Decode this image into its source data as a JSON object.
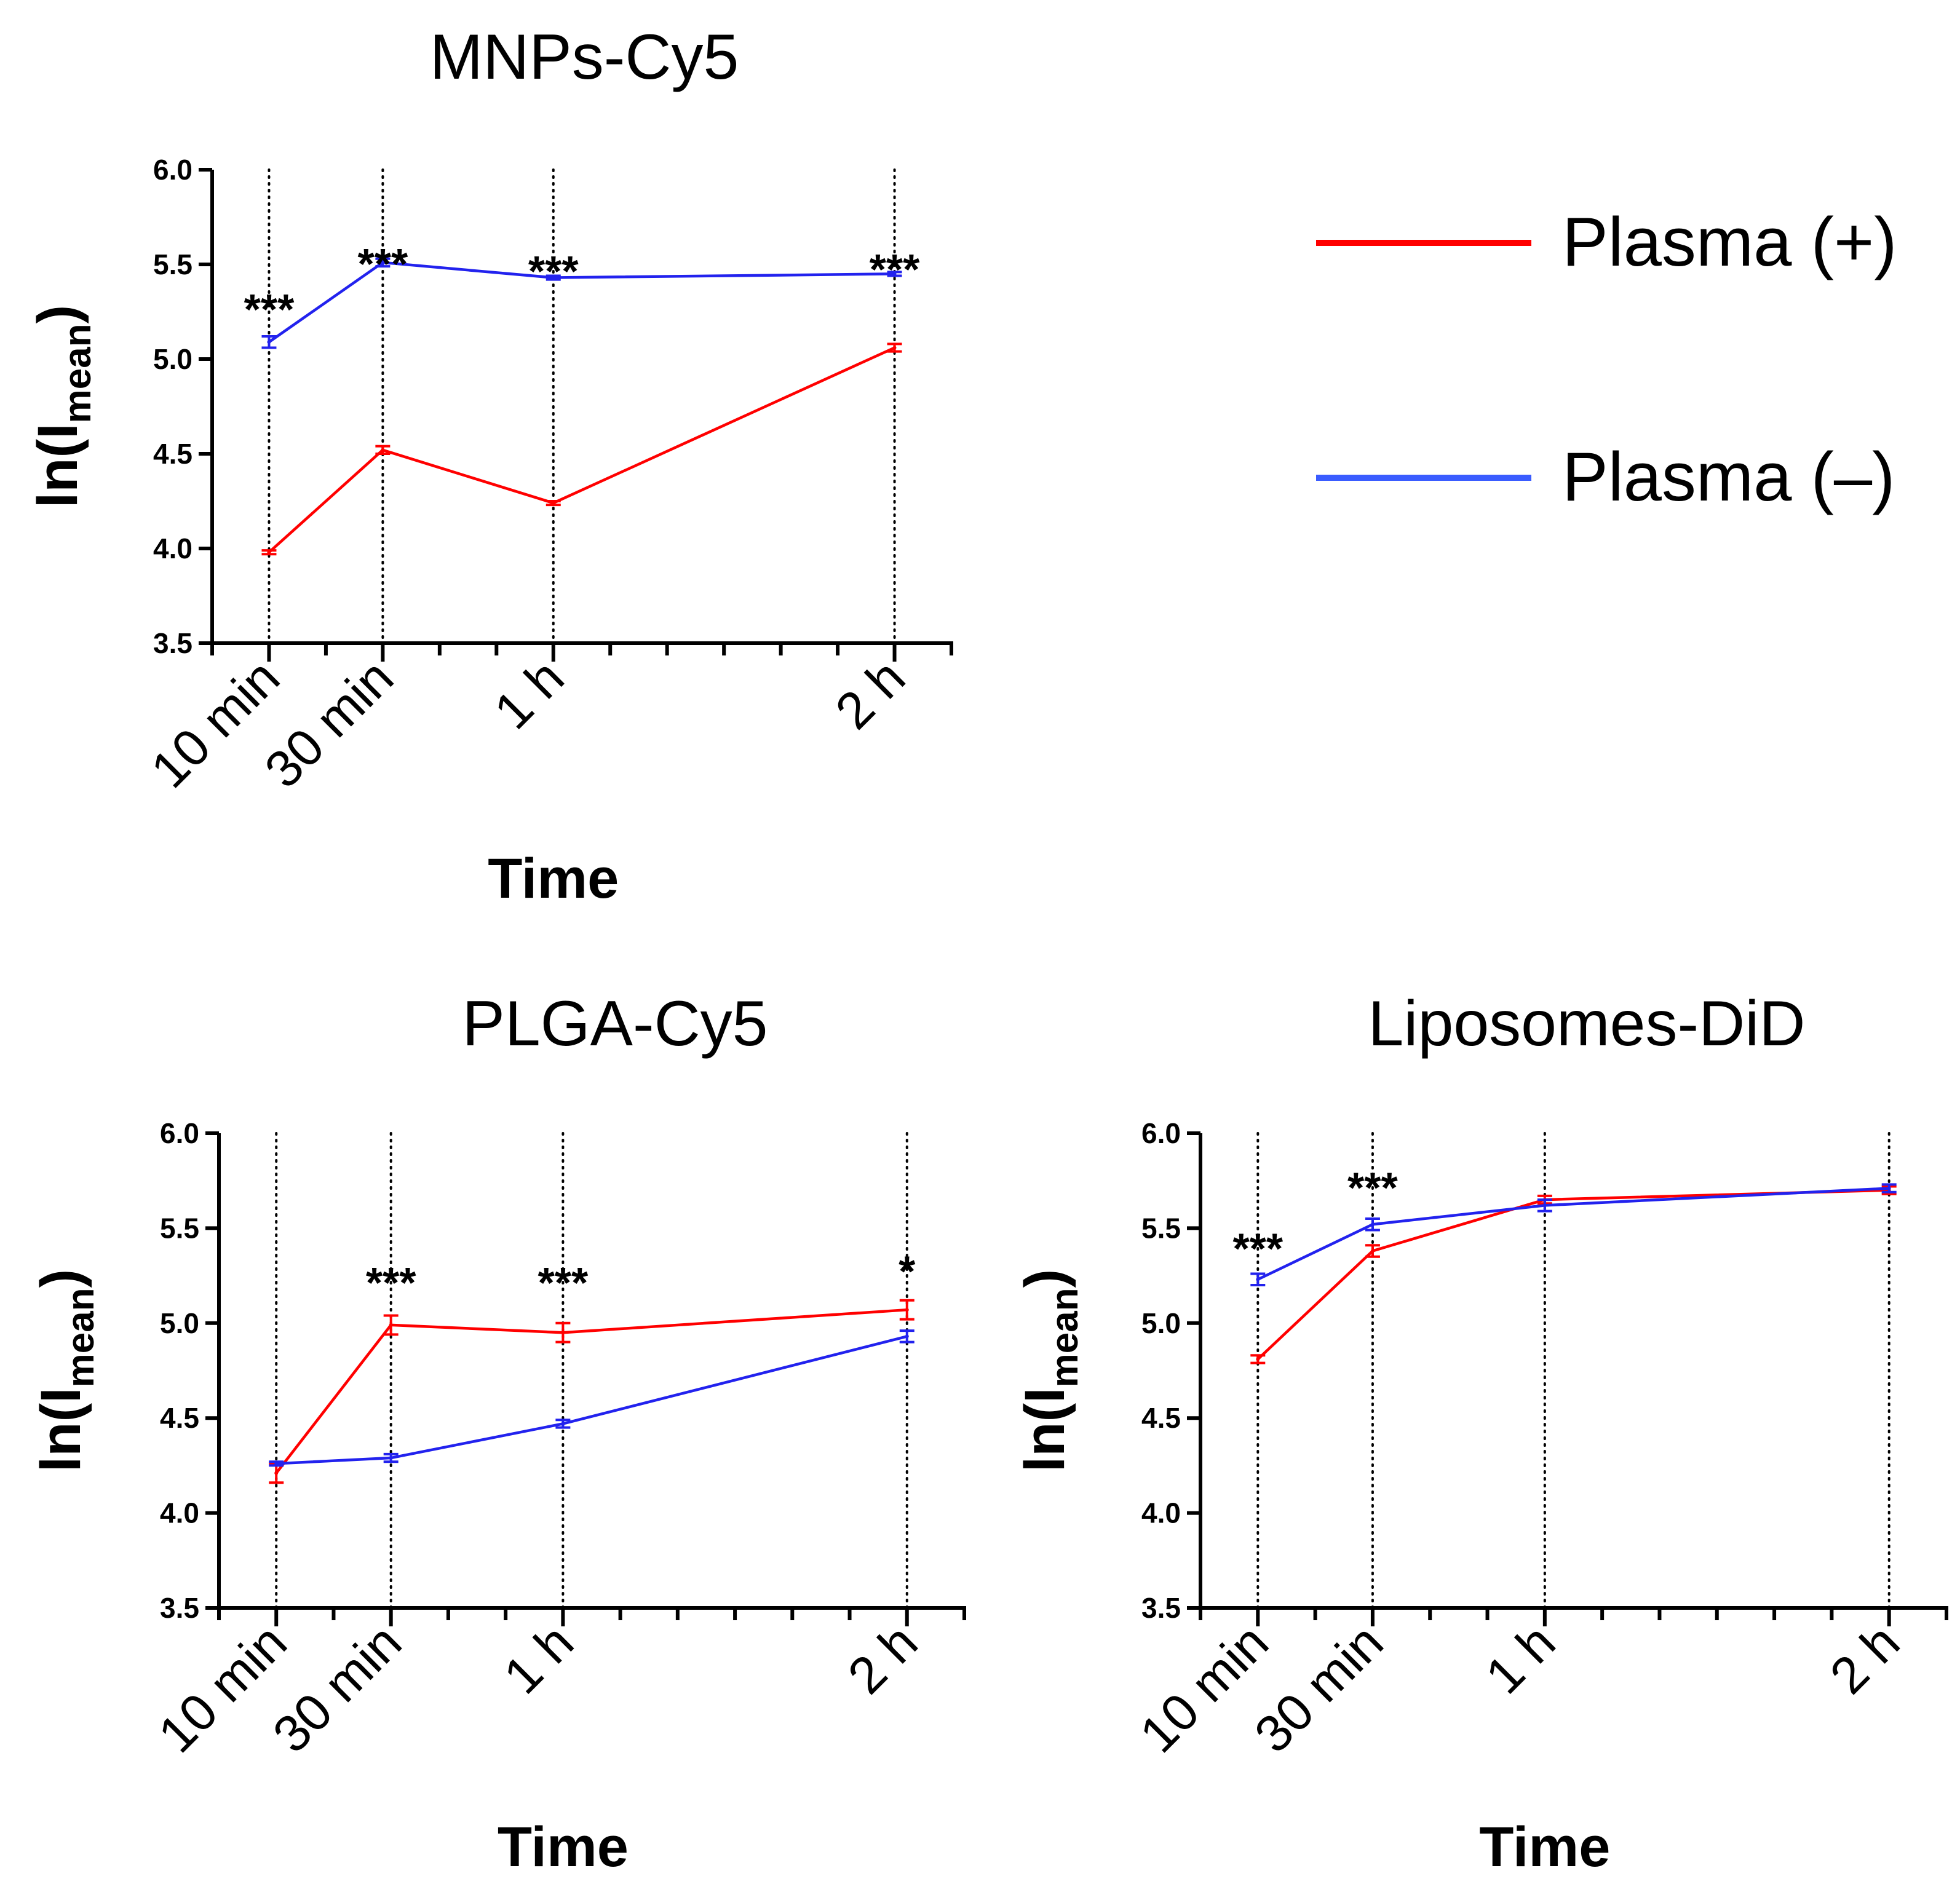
{
  "legend": {
    "entries": [
      {
        "label": "Plasma (+)",
        "color": "#ff0000"
      },
      {
        "label": "Plasma (–)",
        "color": "#3a5cff"
      }
    ]
  },
  "chart_data": [
    {
      "type": "line",
      "title": "MNPs-Cy5",
      "xlabel": "Time",
      "ylabel": "ln(I",
      "ylabel_sub": "mean",
      "ylabel_close": ")",
      "x_unit": "minutes",
      "x_range": [
        0,
        130
      ],
      "categories": [
        "10 min",
        "30 min",
        "1 h",
        "2 h"
      ],
      "x": [
        10,
        30,
        60,
        120
      ],
      "ylim": [
        3.5,
        6.0
      ],
      "yticks": [
        "3.5",
        "4.0",
        "4.5",
        "5.0",
        "5.5",
        "6.0"
      ],
      "grid": "vertical-dotted-at-timepoints",
      "series": [
        {
          "name": "Plasma (+)",
          "color": "#ff0000",
          "values": [
            3.98,
            4.52,
            4.24,
            5.06
          ],
          "errors": [
            0.01,
            0.02,
            0.01,
            0.02
          ]
        },
        {
          "name": "Plasma (–)",
          "color": "#2222ee",
          "values": [
            5.09,
            5.51,
            5.43,
            5.45
          ],
          "errors": [
            0.03,
            0.02,
            0.01,
            0.01
          ]
        }
      ],
      "annotations": [
        "***",
        "***",
        "***",
        "***"
      ],
      "annotation_y": [
        5.27,
        5.51,
        5.47,
        5.48
      ]
    },
    {
      "type": "line",
      "title": "PLGA-Cy5",
      "xlabel": "Time",
      "ylabel": "ln(I",
      "ylabel_sub": "mean",
      "ylabel_close": ")",
      "x_unit": "minutes",
      "x_range": [
        0,
        130
      ],
      "categories": [
        "10 min",
        "30 min",
        "1 h",
        "2 h"
      ],
      "x": [
        10,
        30,
        60,
        120
      ],
      "ylim": [
        3.5,
        6.0
      ],
      "yticks": [
        "3.5",
        "4.0",
        "4.5",
        "5.0",
        "5.5",
        "6.0"
      ],
      "grid": "vertical-dotted-at-timepoints",
      "series": [
        {
          "name": "Plasma (+)",
          "color": "#ff0000",
          "values": [
            4.21,
            4.99,
            4.95,
            5.07
          ],
          "errors": [
            0.05,
            0.05,
            0.05,
            0.05
          ]
        },
        {
          "name": "Plasma (–)",
          "color": "#2222ee",
          "values": [
            4.26,
            4.29,
            4.47,
            4.93
          ],
          "errors": [
            0.01,
            0.02,
            0.02,
            0.03
          ]
        }
      ],
      "annotations": [
        "",
        "***",
        "***",
        "*"
      ],
      "annotation_y": [
        null,
        5.22,
        5.22,
        5.28
      ]
    },
    {
      "type": "line",
      "title": "Liposomes-DiD",
      "xlabel": "Time",
      "ylabel": "ln(I",
      "ylabel_sub": "mean",
      "ylabel_close": ")",
      "x_unit": "minutes",
      "x_range": [
        0,
        130
      ],
      "categories": [
        "10 min",
        "30 min",
        "1 h",
        "2 h"
      ],
      "x": [
        10,
        30,
        60,
        120
      ],
      "ylim": [
        3.5,
        6.0
      ],
      "yticks": [
        "3.5",
        "4.0",
        "4.5",
        "5.0",
        "5.5",
        "6.0"
      ],
      "grid": "vertical-dotted-at-timepoints",
      "series": [
        {
          "name": "Plasma (+)",
          "color": "#ff0000",
          "values": [
            4.81,
            5.38,
            5.65,
            5.7
          ],
          "errors": [
            0.02,
            0.03,
            0.02,
            0.02
          ]
        },
        {
          "name": "Plasma (–)",
          "color": "#2222ee",
          "values": [
            5.23,
            5.52,
            5.62,
            5.71
          ],
          "errors": [
            0.03,
            0.03,
            0.03,
            0.02
          ]
        }
      ],
      "annotations": [
        "***",
        "***",
        "",
        ""
      ],
      "annotation_y": [
        5.4,
        5.72,
        null,
        null
      ]
    }
  ]
}
